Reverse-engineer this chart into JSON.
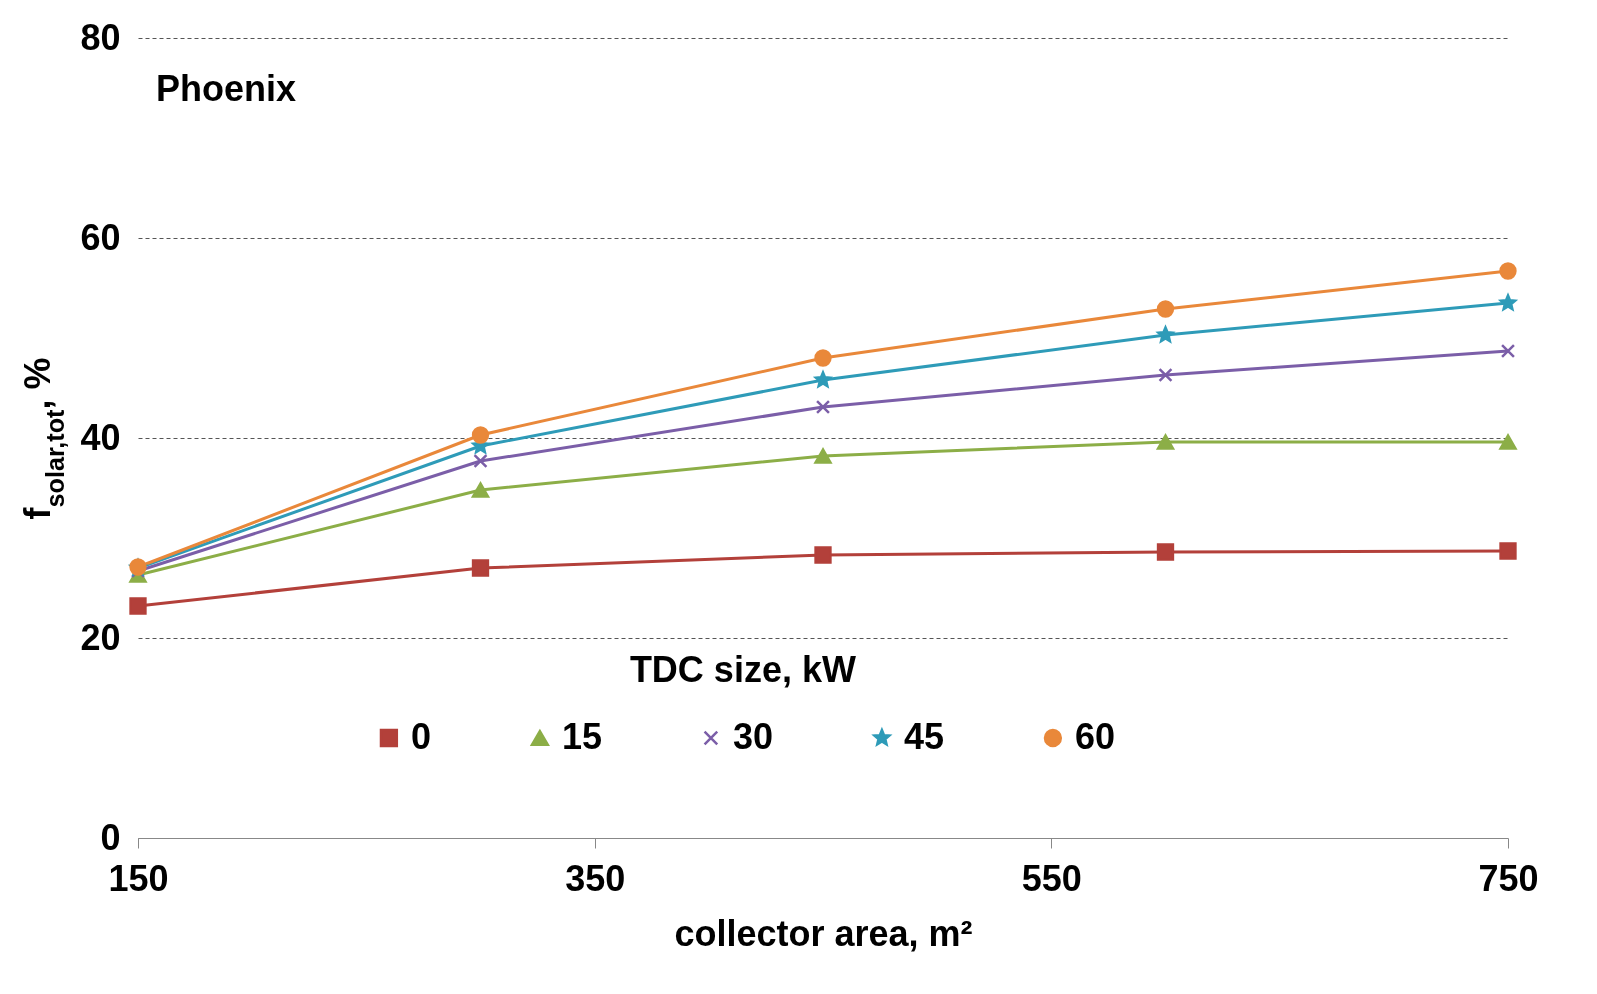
{
  "chart_data": {
    "type": "line",
    "xlabel": "collector area, m²",
    "ylabel": "f$_{solar,tot}$, %",
    "legend_title": "TDC size, kW",
    "annotations": [
      "Phoenix"
    ],
    "x": [
      150,
      300,
      450,
      600,
      750
    ],
    "xlim": [
      150,
      750
    ],
    "xticks": [
      150,
      350,
      550,
      750
    ],
    "ylim": [
      0,
      80
    ],
    "yticks": [
      0,
      20,
      40,
      60,
      80
    ],
    "grid": "y",
    "legend": "bottom",
    "series": [
      {
        "name": "0",
        "color": "#b3403a",
        "marker": "square",
        "values": [
          23.2,
          27.0,
          28.3,
          28.6,
          28.7
        ]
      },
      {
        "name": "15",
        "color": "#8cae47",
        "marker": "triangle",
        "values": [
          26.3,
          34.8,
          38.2,
          39.6,
          39.6
        ]
      },
      {
        "name": "30",
        "color": "#7b5ea8",
        "marker": "cross",
        "values": [
          26.7,
          37.7,
          43.1,
          46.3,
          48.7
        ]
      },
      {
        "name": "45",
        "color": "#2e9bb8",
        "marker": "star",
        "values": [
          27.0,
          39.2,
          45.8,
          50.3,
          53.5
        ]
      },
      {
        "name": "60",
        "color": "#e9883a",
        "marker": "circle",
        "values": [
          27.1,
          40.3,
          48.0,
          52.9,
          56.7
        ]
      }
    ]
  }
}
